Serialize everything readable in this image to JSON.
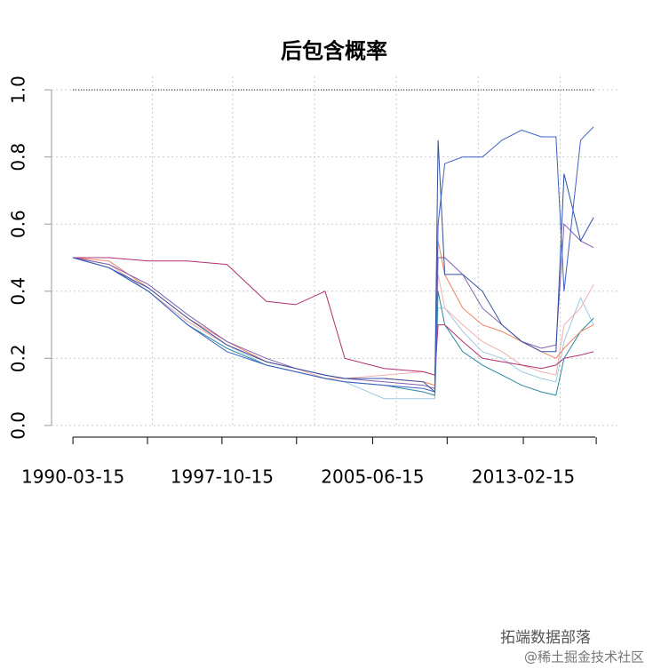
{
  "chart_data": {
    "type": "line",
    "title": "后包含概率",
    "x": [
      "1990-03-15",
      "1992-01-15",
      "1994-01-15",
      "1996-01-15",
      "1998-01-15",
      "2000-01-15",
      "2001-07-15",
      "2003-01-15",
      "2004-01-15",
      "2006-01-15",
      "2008-01-15",
      "2008-08-15",
      "2008-10-15",
      "2009-02-15",
      "2010-01-15",
      "2011-01-15",
      "2012-01-15",
      "2013-01-15",
      "2014-01-15",
      "2014-10-15",
      "2015-03-15",
      "2016-01-15",
      "2016-09-15"
    ],
    "xlim": [
      "1989-02-10",
      "2017-12-01"
    ],
    "xticks": [
      {
        "value": "1990-03-15",
        "label": "1990-03-15"
      },
      {
        "value": "1993-12-30"
      },
      {
        "value": "1997-10-15",
        "label": "1997-10-15"
      },
      {
        "value": "2001-08-01"
      },
      {
        "value": "2005-06-15",
        "label": "2005-06-15"
      },
      {
        "value": "2009-04-01"
      },
      {
        "value": "2013-02-15",
        "label": "2013-02-15"
      },
      {
        "value": "2016-11-01"
      }
    ],
    "xgrid": [
      "1994-04-01",
      "1998-05-01",
      "2002-07-01",
      "2006-09-01",
      "2010-11-01",
      "2015-01-01"
    ],
    "ylim": [
      -0.04,
      1.04
    ],
    "yticks": [
      {
        "value": 0,
        "label": "0.0"
      },
      0.2,
      0.4,
      0.6,
      0.8,
      {
        "value": 1,
        "label": "1.0"
      }
    ],
    "grid": true,
    "series": [
      {
        "color": "#000000",
        "style": "dotted",
        "values": [
          1,
          1,
          1,
          1,
          1,
          1,
          1,
          1,
          1,
          1,
          1,
          1,
          1,
          1,
          1,
          1,
          1,
          1,
          1,
          1,
          1,
          1,
          1
        ]
      },
      {
        "color": "#a0c8e0",
        "values": [
          0.5,
          0.47,
          0.4,
          0.31,
          0.24,
          0.18,
          0.16,
          0.14,
          0.13,
          0.08,
          0.08,
          0.08,
          0.35,
          0.35,
          0.28,
          0.22,
          0.2,
          0.16,
          0.14,
          0.13,
          0.25,
          0.38,
          0.3
        ]
      },
      {
        "color": "#f0b0b0",
        "values": [
          0.5,
          0.48,
          0.4,
          0.31,
          0.24,
          0.19,
          0.17,
          0.14,
          0.14,
          0.15,
          0.16,
          0.15,
          0.45,
          0.35,
          0.3,
          0.25,
          0.22,
          0.18,
          0.16,
          0.15,
          0.3,
          0.35,
          0.42
        ]
      },
      {
        "color": "#2a8aa0",
        "values": [
          0.5,
          0.47,
          0.4,
          0.3,
          0.23,
          0.18,
          0.16,
          0.14,
          0.13,
          0.12,
          0.1,
          0.09,
          0.4,
          0.3,
          0.22,
          0.18,
          0.15,
          0.12,
          0.1,
          0.09,
          0.2,
          0.28,
          0.32
        ]
      },
      {
        "color": "#f08060",
        "values": [
          0.5,
          0.49,
          0.41,
          0.32,
          0.25,
          0.19,
          0.17,
          0.15,
          0.14,
          0.14,
          0.13,
          0.12,
          0.55,
          0.45,
          0.35,
          0.3,
          0.28,
          0.25,
          0.22,
          0.2,
          0.23,
          0.28,
          0.3
        ]
      },
      {
        "color": "#b03070",
        "values": [
          0.5,
          0.5,
          0.49,
          0.49,
          0.48,
          0.37,
          0.36,
          0.4,
          0.2,
          0.17,
          0.16,
          0.15,
          0.3,
          0.3,
          0.25,
          0.2,
          0.19,
          0.18,
          0.17,
          0.18,
          0.2,
          0.21,
          0.22
        ]
      },
      {
        "color": "#8060b0",
        "values": [
          0.5,
          0.48,
          0.42,
          0.33,
          0.25,
          0.2,
          0.17,
          0.15,
          0.14,
          0.13,
          0.12,
          0.11,
          0.5,
          0.5,
          0.45,
          0.35,
          0.3,
          0.25,
          0.23,
          0.24,
          0.6,
          0.55,
          0.53
        ]
      },
      {
        "color": "#3050a0",
        "values": [
          0.5,
          0.47,
          0.41,
          0.32,
          0.24,
          0.19,
          0.17,
          0.15,
          0.14,
          0.14,
          0.13,
          0.1,
          0.85,
          0.45,
          0.45,
          0.4,
          0.3,
          0.25,
          0.22,
          0.22,
          0.75,
          0.55,
          0.62
        ]
      },
      {
        "color": "#4060c0",
        "values": [
          0.5,
          0.47,
          0.4,
          0.3,
          0.22,
          0.18,
          0.16,
          0.14,
          0.13,
          0.12,
          0.11,
          0.1,
          0.6,
          0.78,
          0.8,
          0.8,
          0.85,
          0.88,
          0.86,
          0.86,
          0.4,
          0.85,
          0.89
        ]
      }
    ]
  },
  "watermarks": [
    "拓端数据部落",
    "@稀土掘金技术社区"
  ]
}
